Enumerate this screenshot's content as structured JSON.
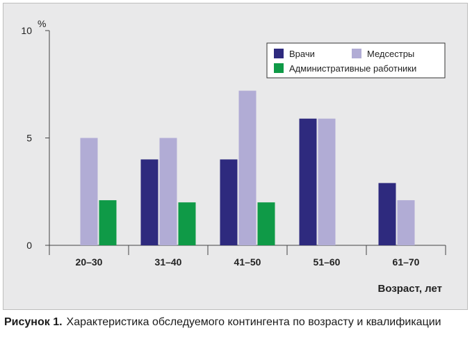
{
  "chart_data": {
    "type": "bar",
    "ylabel": "%",
    "xlabel": "Возраст, лет",
    "ylim": [
      0,
      10
    ],
    "yticks": [
      "0",
      "5",
      "10"
    ],
    "categories": [
      "20–30",
      "31–40",
      "41–50",
      "51–60",
      "61–70"
    ],
    "series": [
      {
        "name": "Врачи",
        "color": "#2e2a7e",
        "values": [
          null,
          4.0,
          4.0,
          5.9,
          2.9
        ]
      },
      {
        "name": "Медсестры",
        "color": "#b1acd5",
        "values": [
          5.0,
          5.0,
          7.2,
          5.9,
          2.1
        ]
      },
      {
        "name": "Административные работники",
        "color": "#0f9a47",
        "values": [
          2.1,
          2.0,
          2.0,
          null,
          null
        ]
      }
    ],
    "legend_position": "top-right",
    "grid": false
  },
  "caption": {
    "lead": "Рисунок 1.",
    "text": "Характеристика обследуемого контингента по возрасту и квалификации"
  }
}
